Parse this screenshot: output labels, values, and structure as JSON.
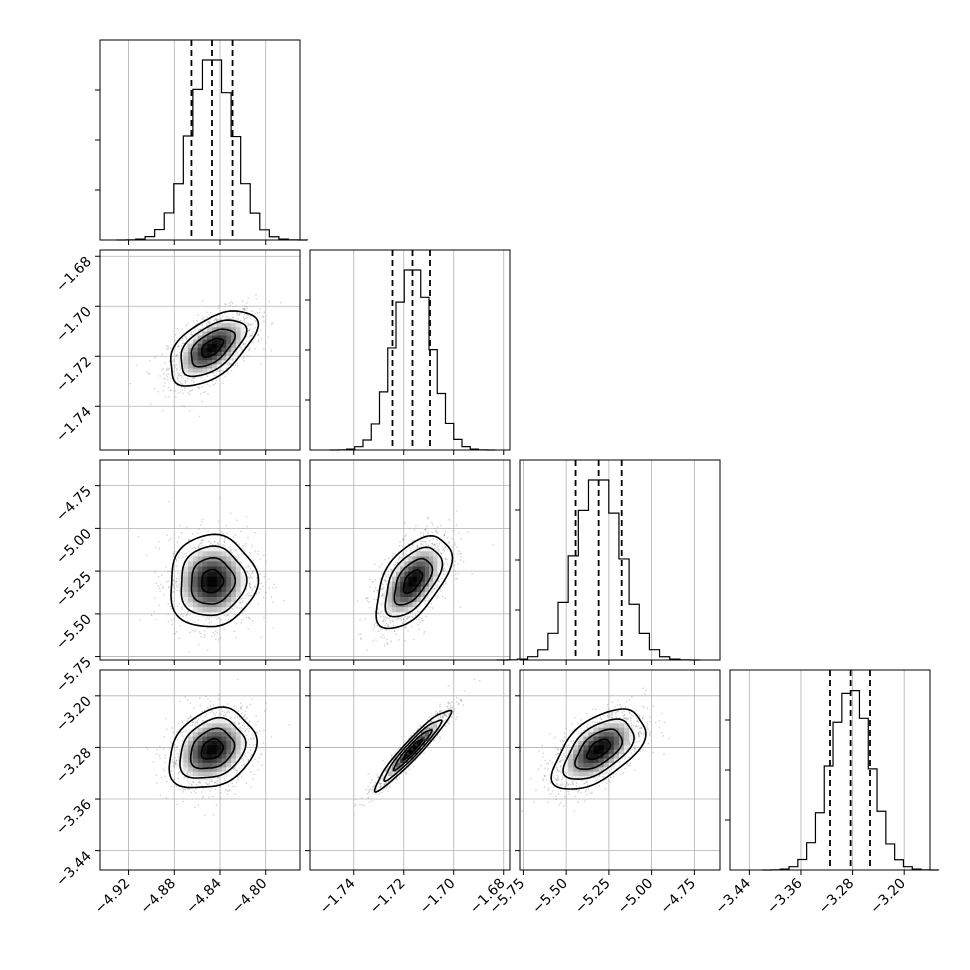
{
  "chart_data": {
    "type": "corner",
    "parameters": [
      "",
      "",
      "",
      ""
    ],
    "ranges": [
      [
        -4.945,
        -4.77
      ],
      [
        -1.7575,
        -1.6775
      ],
      [
        -5.77,
        -4.6
      ],
      [
        -3.47,
        -3.16
      ]
    ],
    "ticks": [
      [
        -4.92,
        -4.88,
        -4.84,
        -4.8
      ],
      [
        -1.74,
        -1.72,
        -1.7,
        -1.68
      ],
      [
        -5.75,
        -5.5,
        -5.25,
        -5.0,
        -4.75
      ],
      [
        -3.44,
        -3.36,
        -3.28,
        -3.2
      ]
    ],
    "tick_labels": [
      [
        "−4.92",
        "−4.88",
        "−4.84",
        "−4.80"
      ],
      [
        "−1.74",
        "−1.72",
        "−1.70",
        "−1.68"
      ],
      [
        "−5.75",
        "−5.50",
        "−5.25",
        "−5.00",
        "−4.75"
      ],
      [
        "−3.44",
        "−3.36",
        "−3.28",
        "−3.20"
      ]
    ],
    "quantiles": [
      0.16,
      0.5,
      0.84
    ],
    "quantile_values": [
      [
        -4.865,
        -4.847,
        -4.829
      ],
      [
        -1.7245,
        -1.7165,
        -1.7095
      ],
      [
        -5.445,
        -5.31,
        -5.175
      ],
      [
        -3.315,
        -3.283,
        -3.253
      ]
    ],
    "medians": [
      -4.847,
      -1.7165,
      -5.31,
      -3.283
    ],
    "sigmas": [
      0.019,
      0.0075,
      0.135,
      0.031
    ],
    "correlations": [
      [
        1.0,
        0.55,
        0.05,
        0.25
      ],
      [
        0.55,
        1.0,
        0.55,
        0.95
      ],
      [
        0.05,
        0.55,
        1.0,
        0.55
      ],
      [
        0.25,
        0.95,
        0.55,
        1.0
      ]
    ],
    "grid": true,
    "colors": {
      "line": "#000000",
      "grid": "#b0b0b0",
      "points": "#808080"
    }
  }
}
